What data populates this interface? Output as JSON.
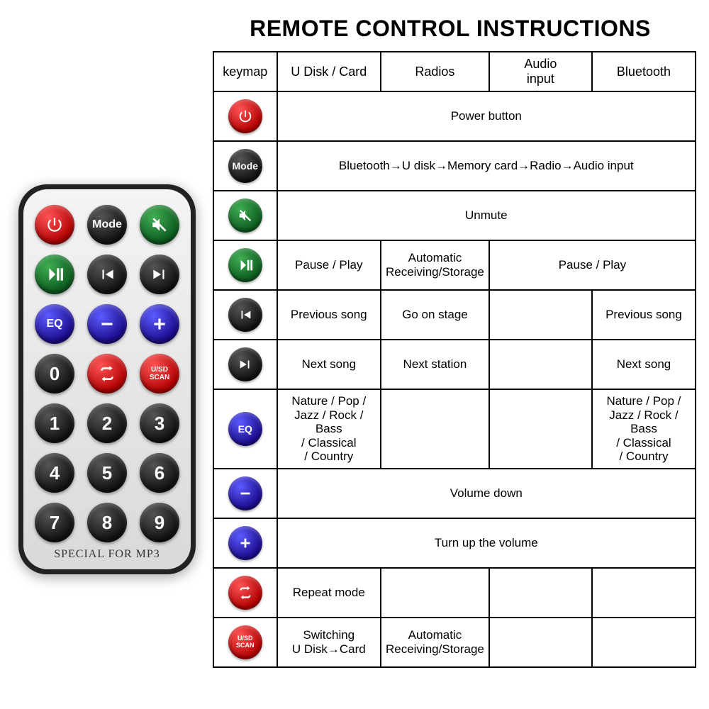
{
  "title": "REMOTE CONTROL INSTRUCTIONS",
  "colors": {
    "red": "#b00000",
    "black": "#111111",
    "green": "#0c5a1f",
    "blue": "#1a0a8a",
    "border": "#000000",
    "bg": "#ffffff"
  },
  "remote": {
    "footer": "SPECIAL FOR MP3",
    "buttons": [
      {
        "id": "power",
        "type": "power",
        "color": "red"
      },
      {
        "id": "mode",
        "type": "text",
        "label": "Mode",
        "color": "black"
      },
      {
        "id": "mute",
        "type": "mute",
        "color": "green"
      },
      {
        "id": "playpause",
        "type": "playpause",
        "color": "green"
      },
      {
        "id": "prev",
        "type": "prev",
        "color": "black"
      },
      {
        "id": "next",
        "type": "next",
        "color": "black"
      },
      {
        "id": "eq",
        "type": "text",
        "label": "EQ",
        "color": "blue"
      },
      {
        "id": "minus",
        "type": "minus",
        "color": "blue"
      },
      {
        "id": "plus",
        "type": "plus",
        "color": "blue"
      },
      {
        "id": "num0",
        "type": "text",
        "label": "0",
        "color": "black",
        "num": true
      },
      {
        "id": "repeat",
        "type": "repeat",
        "color": "red"
      },
      {
        "id": "usd",
        "type": "text",
        "label": "U/SD\nSCAN",
        "color": "red",
        "small": true
      },
      {
        "id": "num1",
        "type": "text",
        "label": "1",
        "color": "black",
        "num": true
      },
      {
        "id": "num2",
        "type": "text",
        "label": "2",
        "color": "black",
        "num": true
      },
      {
        "id": "num3",
        "type": "text",
        "label": "3",
        "color": "black",
        "num": true
      },
      {
        "id": "num4",
        "type": "text",
        "label": "4",
        "color": "black",
        "num": true
      },
      {
        "id": "num5",
        "type": "text",
        "label": "5",
        "color": "black",
        "num": true
      },
      {
        "id": "num6",
        "type": "text",
        "label": "6",
        "color": "black",
        "num": true
      },
      {
        "id": "num7",
        "type": "text",
        "label": "7",
        "color": "black",
        "num": true
      },
      {
        "id": "num8",
        "type": "text",
        "label": "8",
        "color": "black",
        "num": true
      },
      {
        "id": "num9",
        "type": "text",
        "label": "9",
        "color": "black",
        "num": true
      }
    ]
  },
  "table": {
    "headers": [
      "keymap",
      "U Disk / Card",
      "Radios",
      "Audio\ninput",
      "Bluetooth"
    ],
    "rows": [
      {
        "btn": {
          "type": "power",
          "color": "red"
        },
        "cells": [
          {
            "span": 4,
            "text": "Power button"
          }
        ]
      },
      {
        "btn": {
          "type": "text",
          "label": "Mode",
          "color": "black"
        },
        "cells": [
          {
            "span": 4,
            "text": "Bluetooth→U disk→Memory card→Radio→Audio input"
          }
        ]
      },
      {
        "btn": {
          "type": "mute",
          "color": "green"
        },
        "cells": [
          {
            "span": 4,
            "text": "Unmute"
          }
        ]
      },
      {
        "btn": {
          "type": "playpause",
          "color": "green"
        },
        "cells": [
          {
            "span": 1,
            "text": "Pause / Play"
          },
          {
            "span": 1,
            "stack": [
              "Automatic",
              "Receiving/Storage"
            ],
            "small": true
          },
          {
            "span": 2,
            "text": "Pause / Play"
          }
        ]
      },
      {
        "btn": {
          "type": "prev",
          "color": "black"
        },
        "cells": [
          {
            "span": 1,
            "text": "Previous song"
          },
          {
            "span": 1,
            "text": "Go on stage"
          },
          {
            "span": 1,
            "text": ""
          },
          {
            "span": 1,
            "text": "Previous song"
          }
        ]
      },
      {
        "btn": {
          "type": "next",
          "color": "black"
        },
        "cells": [
          {
            "span": 1,
            "text": "Next song"
          },
          {
            "span": 1,
            "text": "Next station"
          },
          {
            "span": 1,
            "text": ""
          },
          {
            "span": 1,
            "text": "Next song"
          }
        ]
      },
      {
        "btn": {
          "type": "text",
          "label": "EQ",
          "color": "blue"
        },
        "cells": [
          {
            "span": 1,
            "stack": [
              "Nature / Pop /",
              "Jazz / Rock / Bass",
              "/ Classical",
              "/ Country"
            ],
            "xsmall": true
          },
          {
            "span": 1,
            "text": ""
          },
          {
            "span": 1,
            "text": ""
          },
          {
            "span": 1,
            "stack": [
              "Nature / Pop /",
              "Jazz / Rock / Bass",
              "/ Classical",
              "/ Country"
            ],
            "xsmall": true
          }
        ]
      },
      {
        "btn": {
          "type": "minus",
          "color": "blue"
        },
        "cells": [
          {
            "span": 4,
            "text": "Volume down"
          }
        ]
      },
      {
        "btn": {
          "type": "plus",
          "color": "blue"
        },
        "cells": [
          {
            "span": 4,
            "text": "Turn up the volume"
          }
        ]
      },
      {
        "btn": {
          "type": "repeat",
          "color": "red"
        },
        "cells": [
          {
            "span": 1,
            "text": "Repeat mode"
          },
          {
            "span": 1,
            "text": ""
          },
          {
            "span": 1,
            "text": ""
          },
          {
            "span": 1,
            "text": ""
          }
        ]
      },
      {
        "btn": {
          "type": "text",
          "label": "U/SD\nSCAN",
          "color": "red",
          "small": true
        },
        "cells": [
          {
            "span": 1,
            "stack": [
              "Switching",
              "U Disk→Card"
            ],
            "small": true
          },
          {
            "span": 1,
            "stack": [
              "Automatic",
              "Receiving/Storage"
            ],
            "small": true
          },
          {
            "span": 1,
            "text": ""
          },
          {
            "span": 1,
            "text": ""
          }
        ]
      }
    ]
  }
}
